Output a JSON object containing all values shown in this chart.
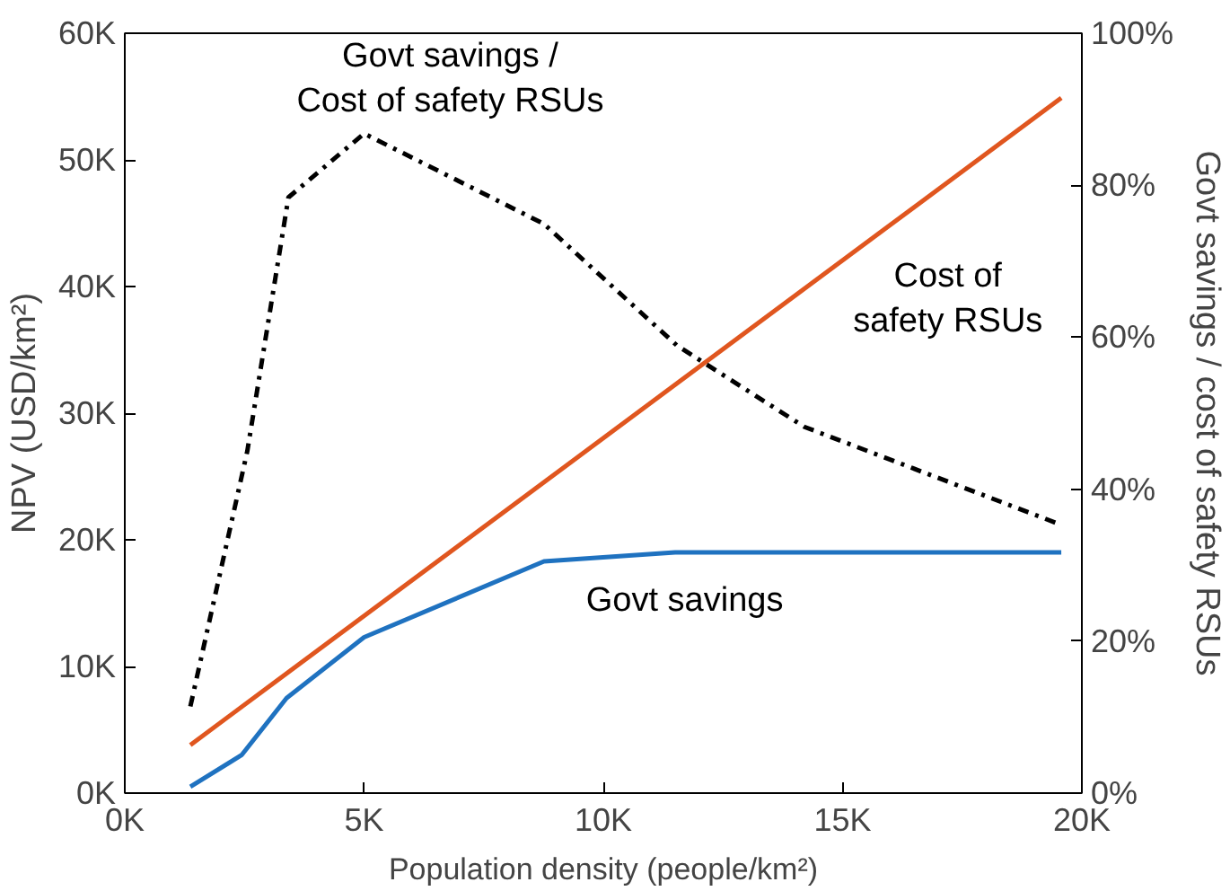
{
  "chart_data": {
    "type": "line",
    "xlabel": "Population density (people/km²)",
    "ylabel": "NPV (USD/km²)",
    "y2label": "Govt savings / cost of safety RSUs",
    "xlim": [
      0,
      20000
    ],
    "xticks": [
      {
        "value": 0,
        "label": "0K"
      },
      {
        "value": 5000,
        "label": "5K"
      },
      {
        "value": 10000,
        "label": "10K"
      },
      {
        "value": 15000,
        "label": "15K"
      },
      {
        "value": 20000,
        "label": "20K"
      }
    ],
    "ylim": [
      0,
      60000
    ],
    "yticks": [
      {
        "value": 0,
        "label": "0K"
      },
      {
        "value": 10000,
        "label": "10K"
      },
      {
        "value": 20000,
        "label": "20K"
      },
      {
        "value": 30000,
        "label": "30K"
      },
      {
        "value": 40000,
        "label": "40K"
      },
      {
        "value": 50000,
        "label": "50K"
      },
      {
        "value": 60000,
        "label": "60K"
      }
    ],
    "y2lim": [
      0,
      100
    ],
    "y2ticks": [
      {
        "value": 0,
        "label": "0%"
      },
      {
        "value": 20,
        "label": "20%"
      },
      {
        "value": 40,
        "label": "40%"
      },
      {
        "value": 60,
        "label": "60%"
      },
      {
        "value": 80,
        "label": "80%"
      },
      {
        "value": 100,
        "label": "100%"
      }
    ],
    "grid": false,
    "series": [
      {
        "color": "#e0561f",
        "line_style": "solid",
        "x": [
          1370,
          19570
        ],
        "values": [
          3800,
          54900
        ]
      },
      {
        "color": "#1f72c0",
        "line_style": "solid",
        "x": [
          1370,
          2440,
          3380,
          5000,
          8760,
          11500,
          19570
        ],
        "values": [
          500,
          3000,
          7500,
          12300,
          18300,
          19000,
          19000
        ]
      },
      {
        "color": "#000000",
        "line_style": "dashdot",
        "axis": "y2",
        "x": [
          1370,
          2560,
          3420,
          5000,
          8760,
          11540,
          14200,
          19570
        ],
        "values": [
          11.4,
          45,
          78.4,
          86.8,
          74.9,
          58.9,
          48.2,
          35.3
        ]
      }
    ],
    "annotations": [
      "Govt savings /\nCost of safety RSUs",
      "Cost of\nsafety RSUs",
      "Govt savings"
    ]
  }
}
